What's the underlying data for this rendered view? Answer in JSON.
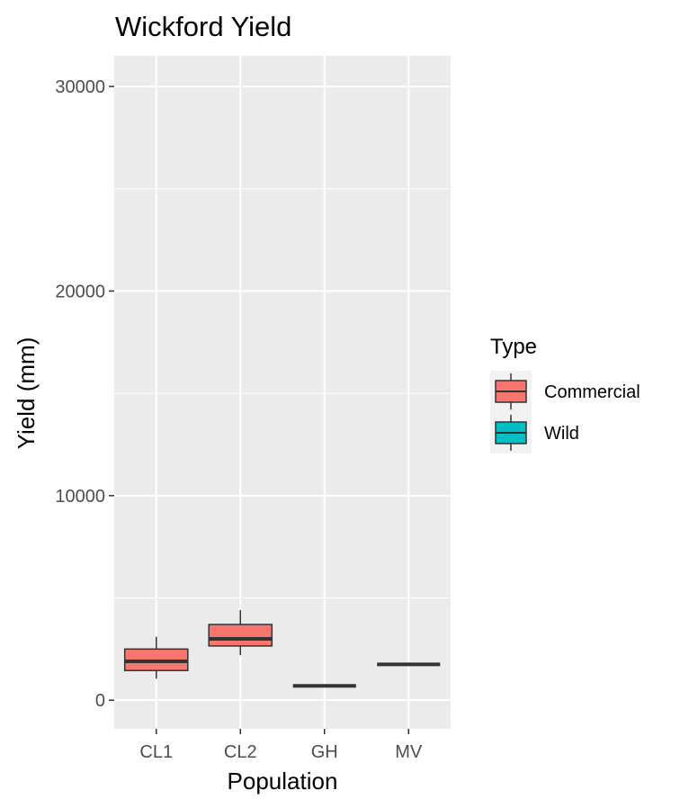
{
  "chart_data": {
    "type": "boxplot",
    "title": "Wickford Yield",
    "xlabel": "Population",
    "ylabel": "Yield (mm)",
    "categories": [
      "CL1",
      "CL2",
      "GH",
      "MV"
    ],
    "ylim": [
      -1400,
      31500
    ],
    "yticks": [
      0,
      10000,
      20000,
      30000
    ],
    "ytick_labels": [
      "0",
      "10000",
      "20000",
      "30000"
    ],
    "grid": true,
    "legend": {
      "title": "Type",
      "position": "right",
      "entries": [
        {
          "label": "Commercial",
          "color": "#F8766D"
        },
        {
          "label": "Wild",
          "color": "#00BFC4"
        }
      ]
    },
    "series": [
      {
        "category": "CL1",
        "type": "Commercial",
        "min": 1050,
        "q1": 1450,
        "median": 1900,
        "q3": 2500,
        "max": 3100
      },
      {
        "category": "CL2",
        "type": "Commercial",
        "min": 2200,
        "q1": 2650,
        "median": 3000,
        "q3": 3700,
        "max": 4400
      },
      {
        "category": "GH",
        "type": "Commercial",
        "min": 700,
        "q1": 700,
        "median": 700,
        "q3": 700,
        "max": 700
      },
      {
        "category": "MV",
        "type": "Commercial",
        "min": 1750,
        "q1": 1750,
        "median": 1750,
        "q3": 1750,
        "max": 1750
      }
    ],
    "colors": {
      "panel": "#EBEBEB",
      "grid": "#FFFFFF",
      "box_outline": "#333333",
      "commercial": "#F8766D",
      "wild": "#00BFC4"
    }
  }
}
